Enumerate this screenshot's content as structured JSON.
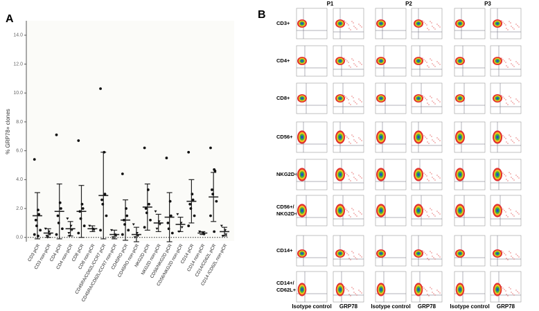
{
  "panel_a": {
    "letter": "A"
  },
  "chart_data": {
    "type": "dot",
    "y_label": "% GRP78+ clones",
    "categories": [
      "CD3 pCR",
      "CD3 non-pCR",
      "CD4 pCR",
      "CD4 non-pCR",
      "CD8 pCR",
      "CD8 non-pCR",
      "CD45RA/CD62L/CCR7 pCR",
      "CD45RA/CD62L/CCR7 non-pCR",
      "CD45RO pCR",
      "CD45RO non-pCR",
      "NKG2D pCR",
      "NKG2D non-pCR",
      "CD56/NKG2D pCR",
      "CD56/NKG2D non-pCR",
      "CD14 pCR",
      "CD14 non-pCR",
      "CD14/CD62L pCR",
      "CD14 /CD62L non-pCR"
    ],
    "means": [
      1.5,
      0.3,
      1.8,
      0.6,
      1.8,
      0.6,
      2.9,
      0.2,
      1.2,
      0.2,
      2.1,
      1.0,
      1.4,
      0.9,
      2.5,
      0.3,
      2.8,
      0.4
    ],
    "sds": [
      1.6,
      0.3,
      1.9,
      0.5,
      1.8,
      0.2,
      3.0,
      0.3,
      1.4,
      0.5,
      1.6,
      0.6,
      1.7,
      0.5,
      1.5,
      0.1,
      1.7,
      0.3
    ],
    "points": [
      [
        5.4,
        1.9,
        1.6,
        1.2,
        0.8,
        0.5,
        0.2,
        0.1
      ],
      [
        0.6,
        0.4,
        0.2,
        0.1,
        0
      ],
      [
        7.1,
        2.4,
        2.0,
        1.5,
        1.0,
        0.6,
        0.2
      ],
      [
        1.3,
        0.8,
        0.5,
        0.3,
        0.1
      ],
      [
        6.7,
        2.3,
        2.0,
        1.8,
        1.3,
        0.8,
        0.3
      ],
      [
        0.8,
        0.6,
        0.5
      ],
      [
        10.3,
        5.9,
        3.0,
        2.6,
        2.3,
        1.5,
        0.5
      ],
      [
        0.5,
        0.2,
        0.1,
        0
      ],
      [
        4.4,
        2.0,
        1.5,
        1.2,
        0.9,
        0.5,
        0.2
      ],
      [
        0.9,
        0.3,
        0.1,
        0
      ],
      [
        6.2,
        3.3,
        2.3,
        2.0,
        1.7,
        1.2,
        0.7
      ],
      [
        1.8,
        1.1,
        0.9,
        0.6
      ],
      [
        5.5,
        2.5,
        1.5,
        1.0,
        0.6,
        0.3
      ],
      [
        1.6,
        1.0,
        0.7,
        0.4
      ],
      [
        5.9,
        3.0,
        2.6,
        2.3,
        2.0,
        1.5,
        0.8
      ],
      [
        0.4,
        0.3,
        0.2
      ],
      [
        6.2,
        4.7,
        4.6,
        3.3,
        3.0,
        2.5,
        1.5,
        0.4
      ],
      [
        0.8,
        0.5,
        0.2,
        0.1
      ]
    ],
    "ylim": [
      -0.3,
      15
    ],
    "yticks": [
      {
        "value": 0,
        "label": "0.0"
      },
      {
        "value": 2,
        "label": "2.0"
      },
      {
        "value": 4,
        "label": "4.0"
      },
      {
        "value": 6,
        "label": "6.0"
      },
      {
        "value": 8,
        "label": "8.0"
      },
      {
        "value": 10,
        "label": "10.0"
      },
      {
        "value": 12,
        "label": "12.0"
      },
      {
        "value": 14,
        "label": "14.0"
      }
    ]
  },
  "panel_b": {
    "letter": "B",
    "columns": [
      "P1",
      "P2",
      "P3"
    ],
    "rows": [
      [
        "CD3+"
      ],
      [
        "CD4+"
      ],
      [
        "CD8+"
      ],
      [
        "CD56+"
      ],
      [
        "NKG2D+"
      ],
      [
        "CD56+/",
        "NKG2D+"
      ],
      [
        "CD14+"
      ],
      [
        "CD14+/",
        "CD62L+"
      ]
    ],
    "x_labels": [
      "Isotype control",
      "GRP78",
      "Isotype control",
      "GRP78",
      "Isotype control",
      "GRP78"
    ]
  }
}
